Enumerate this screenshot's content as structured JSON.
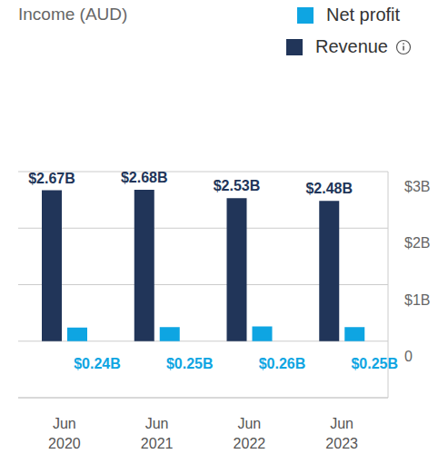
{
  "chart_data": {
    "type": "bar",
    "title": "Income (AUD)",
    "categories": [
      "Jun 2020",
      "Jun 2021",
      "Jun 2022",
      "Jun 2023"
    ],
    "series": [
      {
        "name": "Revenue",
        "color": "#213559",
        "values": [
          2.67,
          2.68,
          2.53,
          2.48
        ],
        "value_labels": [
          "$2.67B",
          "$2.68B",
          "$2.53B",
          "$2.48B"
        ]
      },
      {
        "name": "Net profit",
        "color": "#0ea5e2",
        "values": [
          0.24,
          0.25,
          0.26,
          0.25
        ],
        "value_labels": [
          "$0.24B",
          "$0.25B",
          "$0.26B",
          "$0.25B"
        ]
      }
    ],
    "ylim": [
      -1,
      3
    ],
    "yticks": [
      0,
      {
        "value": 1,
        "label": "$1B"
      },
      {
        "value": 2,
        "label": "$2B"
      },
      {
        "value": 3,
        "label": "$3B"
      }
    ],
    "grid": true,
    "legend": "top-right",
    "data_labels": true
  }
}
